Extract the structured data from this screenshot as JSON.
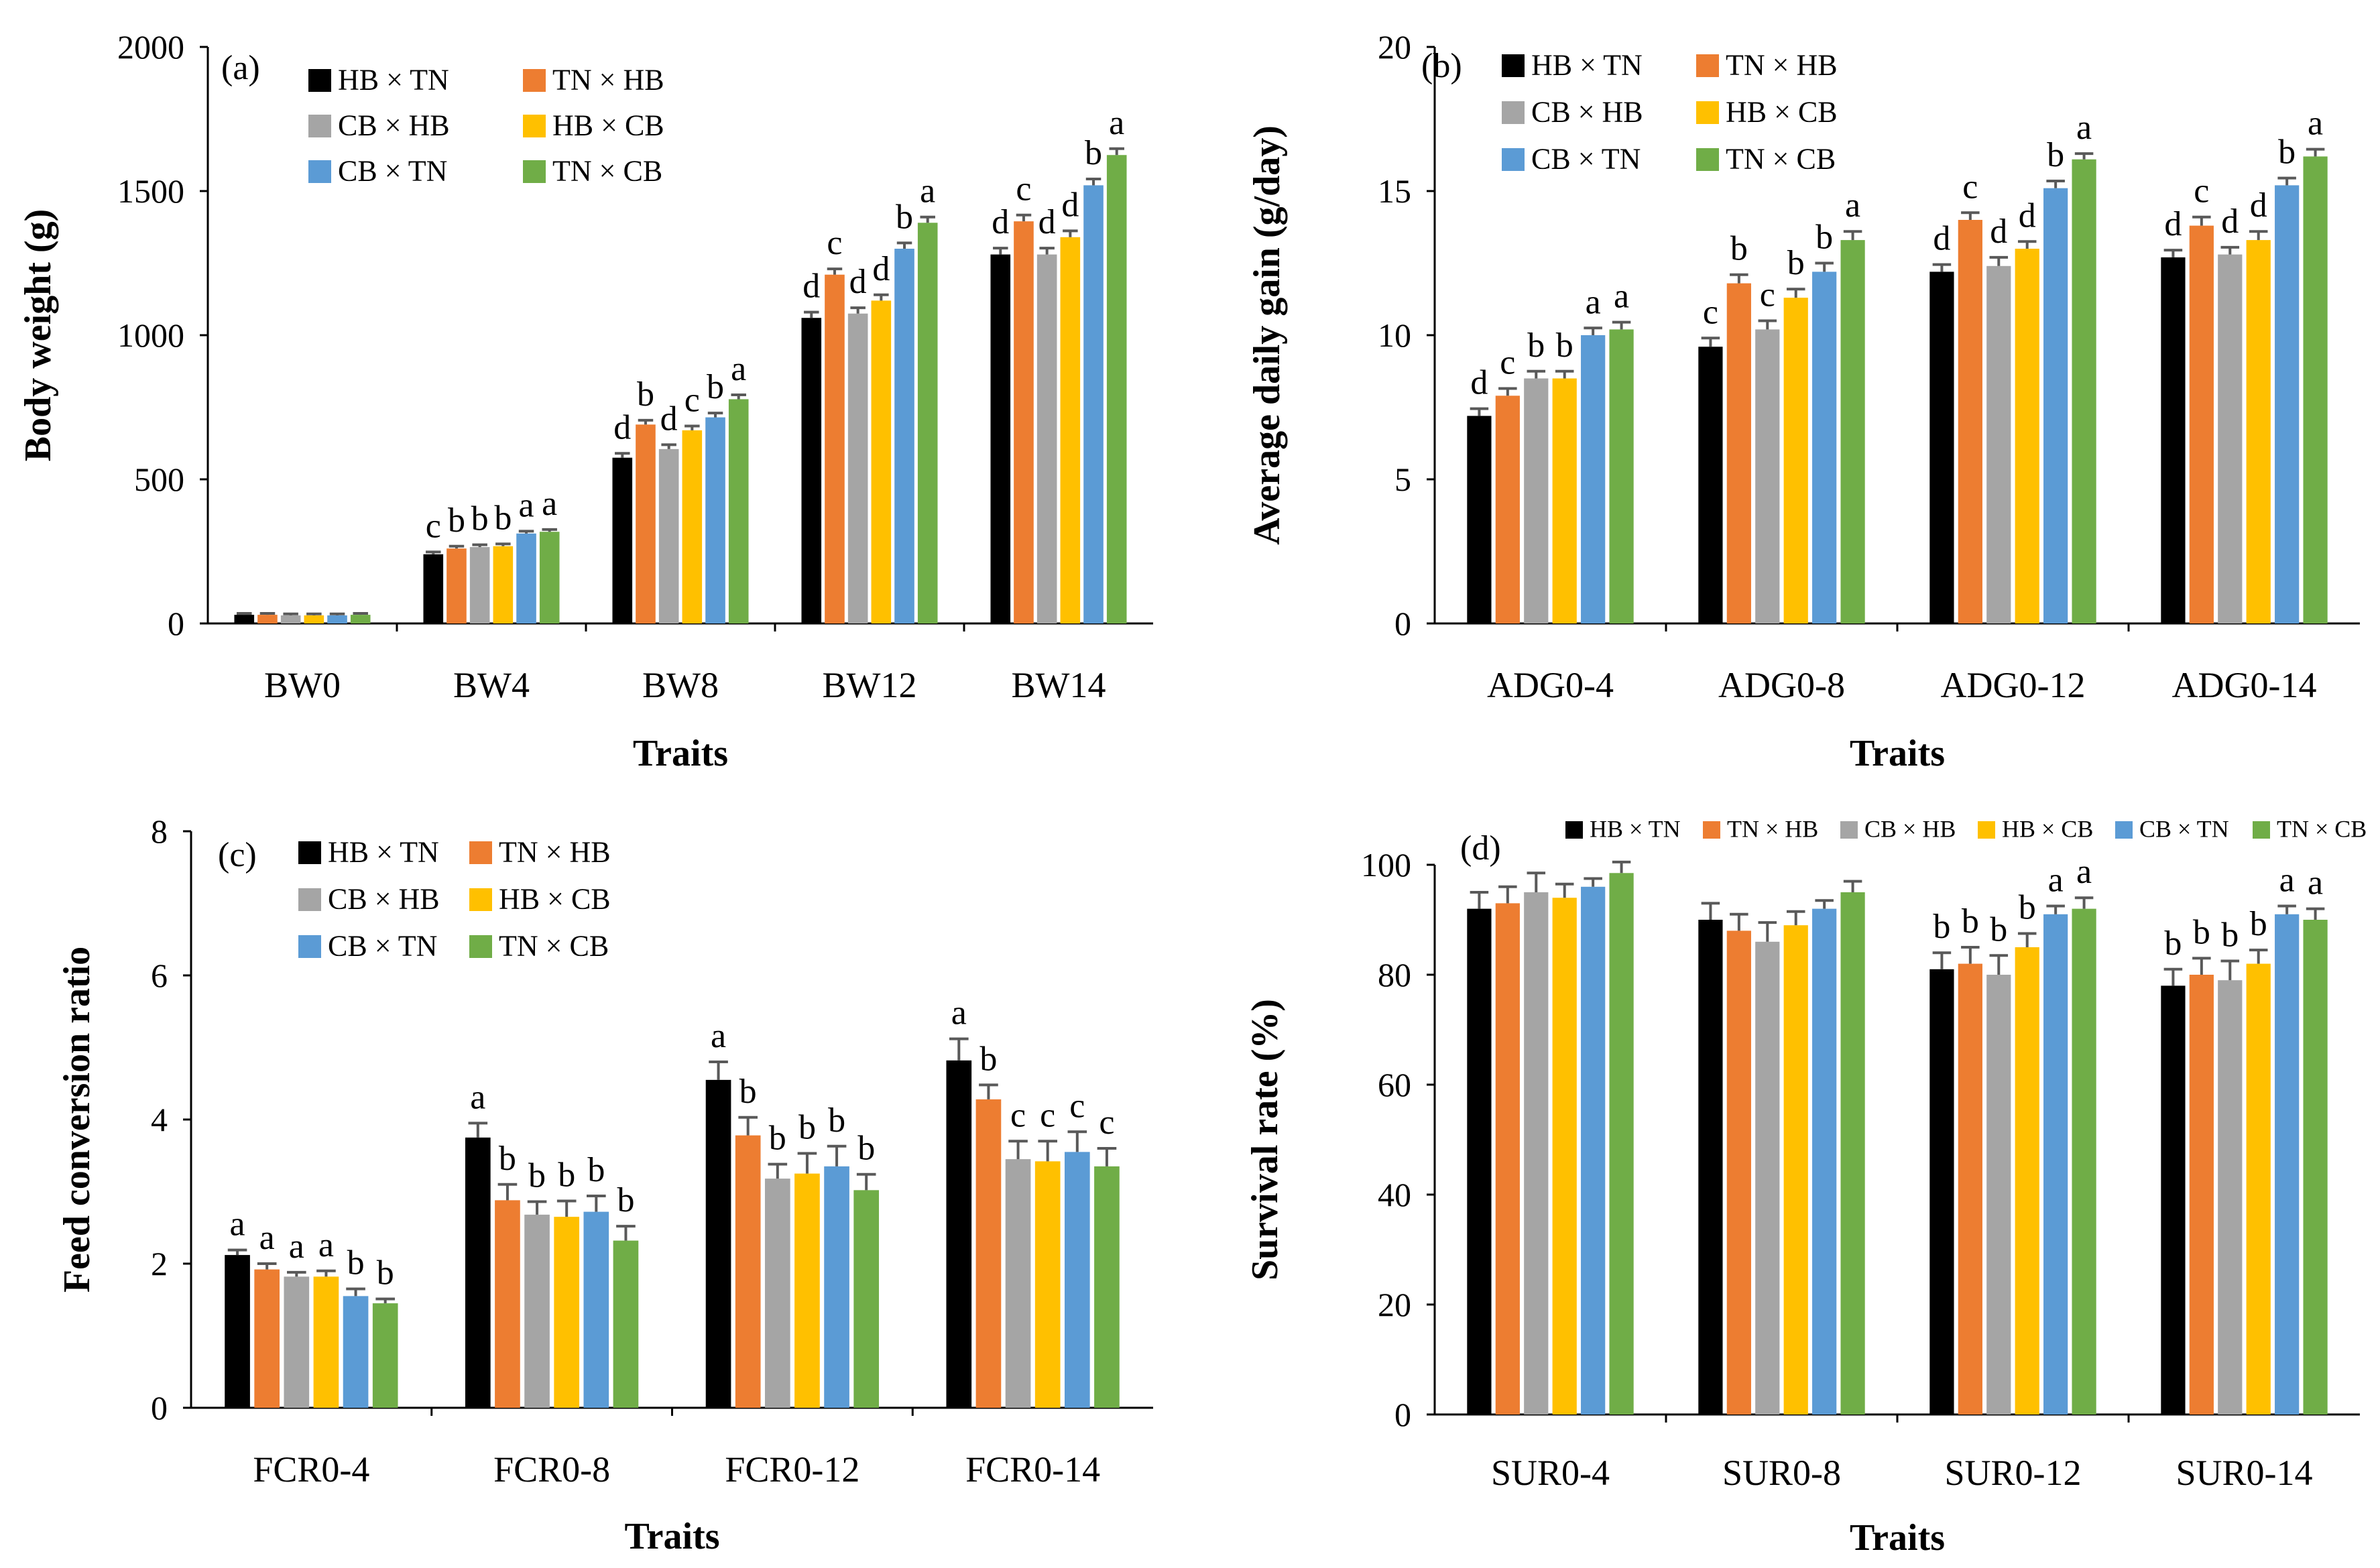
{
  "figure": {
    "description_label": ""
  },
  "colors": {
    "HB × TN": "#000000",
    "TN × HB": "#ED7D31",
    "CB × HB": "#A5A5A5",
    "HB × CB": "#FFC000",
    "CB × TN": "#5B9BD5",
    "TN × CB": "#70AD47",
    "errorbar": "#595959",
    "axis": "#000000"
  },
  "chart_data": [
    {
      "type": "bar",
      "panel_label": "(a)",
      "ylabel": "Body weight (g)",
      "xlabel": "Traits",
      "ylim": [
        0,
        2000
      ],
      "yticks": [
        0,
        500,
        1000,
        1500,
        2000
      ],
      "legend_position": "top-left",
      "categories": [
        "BW0",
        "BW4",
        "BW8",
        "BW12",
        "BW14"
      ],
      "series": [
        {
          "name": "HB × TN",
          "values": [
            30,
            240,
            575,
            1060,
            1280
          ],
          "errors": [
            5,
            8,
            15,
            20,
            22
          ],
          "labels": [
            "",
            "c",
            "d",
            "d",
            "d"
          ]
        },
        {
          "name": "TN × HB",
          "values": [
            30,
            260,
            690,
            1210,
            1395
          ],
          "errors": [
            5,
            8,
            15,
            20,
            22
          ],
          "labels": [
            "",
            "b",
            "b",
            "c",
            "c"
          ]
        },
        {
          "name": "CB × HB",
          "values": [
            28,
            265,
            605,
            1075,
            1280
          ],
          "errors": [
            5,
            8,
            15,
            20,
            22
          ],
          "labels": [
            "",
            "b",
            "d",
            "d",
            "d"
          ]
        },
        {
          "name": "HB × CB",
          "values": [
            28,
            268,
            670,
            1120,
            1340
          ],
          "errors": [
            5,
            8,
            15,
            20,
            22
          ],
          "labels": [
            "",
            "b",
            "c",
            "d",
            "d"
          ]
        },
        {
          "name": "CB × TN",
          "values": [
            28,
            312,
            715,
            1300,
            1520
          ],
          "errors": [
            5,
            8,
            15,
            20,
            22
          ],
          "labels": [
            "",
            "a",
            "b",
            "b",
            "b"
          ]
        },
        {
          "name": "TN × CB",
          "values": [
            30,
            318,
            778,
            1390,
            1625
          ],
          "errors": [
            5,
            8,
            15,
            20,
            22
          ],
          "labels": [
            "",
            "a",
            "a",
            "a",
            "a"
          ]
        }
      ]
    },
    {
      "type": "bar",
      "panel_label": "(b)",
      "ylabel": "Average daily gain (g/day)",
      "xlabel": "Traits",
      "ylim": [
        0,
        20
      ],
      "yticks": [
        0,
        5,
        10,
        15,
        20
      ],
      "legend_position": "top-left",
      "categories": [
        "ADG0-4",
        "ADG0-8",
        "ADG0-12",
        "ADG0-14"
      ],
      "series": [
        {
          "name": "HB × TN",
          "values": [
            7.2,
            9.6,
            12.2,
            12.7
          ],
          "errors": [
            0.25,
            0.3,
            0.25,
            0.25
          ],
          "labels": [
            "d",
            "c",
            "d",
            "d"
          ]
        },
        {
          "name": "TN × HB",
          "values": [
            7.9,
            11.8,
            14.0,
            13.8
          ],
          "errors": [
            0.25,
            0.3,
            0.25,
            0.3
          ],
          "labels": [
            "c",
            "b",
            "c",
            "c"
          ]
        },
        {
          "name": "CB × HB",
          "values": [
            8.5,
            10.2,
            12.4,
            12.8
          ],
          "errors": [
            0.25,
            0.3,
            0.3,
            0.25
          ],
          "labels": [
            "b",
            "c",
            "d",
            "d"
          ]
        },
        {
          "name": "HB × CB",
          "values": [
            8.5,
            11.3,
            13.0,
            13.3
          ],
          "errors": [
            0.25,
            0.3,
            0.25,
            0.3
          ],
          "labels": [
            "b",
            "b",
            "d",
            "d"
          ]
        },
        {
          "name": "CB × TN",
          "values": [
            10.0,
            12.2,
            15.1,
            15.2
          ],
          "errors": [
            0.25,
            0.3,
            0.25,
            0.25
          ],
          "labels": [
            "a",
            "b",
            "b",
            "b"
          ]
        },
        {
          "name": "TN × CB",
          "values": [
            10.2,
            13.3,
            16.1,
            16.2
          ],
          "errors": [
            0.25,
            0.3,
            0.2,
            0.25
          ],
          "labels": [
            "a",
            "a",
            "a",
            "a"
          ]
        }
      ]
    },
    {
      "type": "bar",
      "panel_label": "(c)",
      "ylabel": "Feed conversion ratio",
      "xlabel": "Traits",
      "ylim": [
        0,
        8
      ],
      "yticks": [
        0,
        2,
        4,
        6,
        8
      ],
      "legend_position": "top-left",
      "categories": [
        "FCR0-4",
        "FCR0-8",
        "FCR0-12",
        "FCR0-14"
      ],
      "series": [
        {
          "name": "HB × TN",
          "values": [
            2.12,
            3.75,
            4.55,
            4.82
          ],
          "errors": [
            0.07,
            0.2,
            0.25,
            0.3
          ],
          "labels": [
            "a",
            "a",
            "a",
            "a"
          ]
        },
        {
          "name": "TN × HB",
          "values": [
            1.92,
            2.88,
            3.78,
            4.28
          ],
          "errors": [
            0.08,
            0.22,
            0.25,
            0.2
          ],
          "labels": [
            "a",
            "b",
            "b",
            "b"
          ]
        },
        {
          "name": "CB × HB",
          "values": [
            1.82,
            2.68,
            3.18,
            3.45
          ],
          "errors": [
            0.06,
            0.18,
            0.2,
            0.25
          ],
          "labels": [
            "a",
            "b",
            "b",
            "c"
          ]
        },
        {
          "name": "HB × CB",
          "values": [
            1.82,
            2.65,
            3.25,
            3.42
          ],
          "errors": [
            0.08,
            0.22,
            0.28,
            0.28
          ],
          "labels": [
            "a",
            "b",
            "b",
            "c"
          ]
        },
        {
          "name": "CB × TN",
          "values": [
            1.55,
            2.72,
            3.35,
            3.55
          ],
          "errors": [
            0.1,
            0.22,
            0.28,
            0.28
          ],
          "labels": [
            "b",
            "b",
            "b",
            "c"
          ]
        },
        {
          "name": "TN × CB",
          "values": [
            1.45,
            2.32,
            3.02,
            3.35
          ],
          "errors": [
            0.06,
            0.2,
            0.22,
            0.25
          ],
          "labels": [
            "b",
            "b",
            "b",
            "c"
          ]
        }
      ]
    },
    {
      "type": "bar",
      "panel_label": "(d)",
      "ylabel": "Survival rate (%)",
      "xlabel": "Traits",
      "ylim": [
        0,
        100
      ],
      "yticks": [
        0,
        20,
        40,
        60,
        80,
        100
      ],
      "legend_position": "top",
      "categories": [
        "SUR0-4",
        "SUR0-8",
        "SUR0-12",
        "SUR0-14"
      ],
      "series": [
        {
          "name": "HB × TN",
          "values": [
            92,
            90,
            81,
            78
          ],
          "errors": [
            3,
            3,
            3,
            3
          ],
          "labels": [
            "",
            "",
            "b",
            "b"
          ]
        },
        {
          "name": "TN × HB",
          "values": [
            93,
            88,
            82,
            80
          ],
          "errors": [
            3,
            3,
            3,
            3
          ],
          "labels": [
            "",
            "",
            "b",
            "b"
          ]
        },
        {
          "name": "CB × HB",
          "values": [
            95,
            86,
            80,
            79
          ],
          "errors": [
            3.5,
            3.5,
            3.5,
            3.5
          ],
          "labels": [
            "",
            "",
            "b",
            "b"
          ]
        },
        {
          "name": "HB × CB",
          "values": [
            94,
            89,
            85,
            82
          ],
          "errors": [
            2.5,
            2.5,
            2.5,
            2.5
          ],
          "labels": [
            "",
            "",
            "b",
            "b"
          ]
        },
        {
          "name": "CB × TN",
          "values": [
            96,
            92,
            91,
            91
          ],
          "errors": [
            1.5,
            1.5,
            1.5,
            1.5
          ],
          "labels": [
            "",
            "",
            "a",
            "a"
          ]
        },
        {
          "name": "TN × CB",
          "values": [
            98.5,
            95,
            92,
            90
          ],
          "errors": [
            2,
            2,
            2,
            2
          ],
          "labels": [
            "",
            "",
            "a",
            "a"
          ]
        }
      ]
    }
  ]
}
